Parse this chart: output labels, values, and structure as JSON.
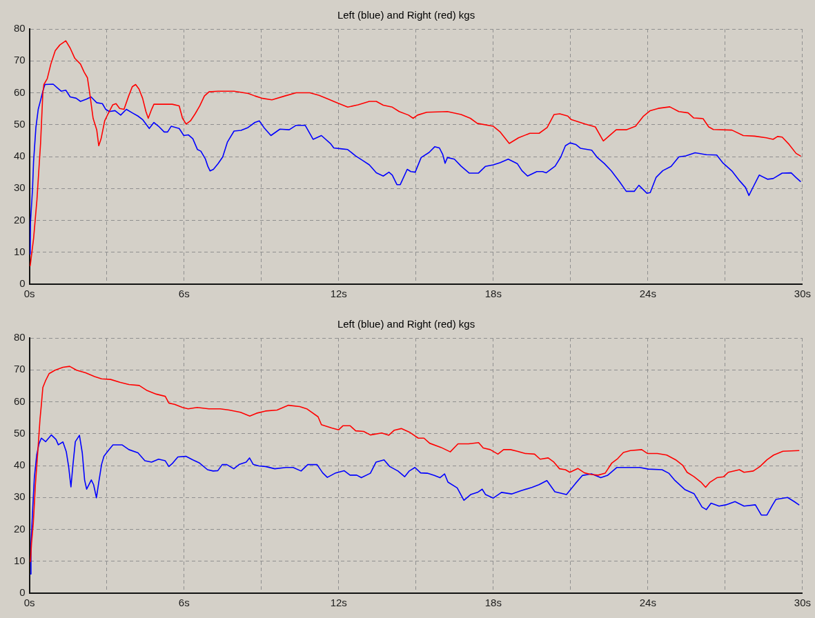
{
  "chart_data": [
    {
      "type": "line",
      "title": "Left (blue) and Right (red) kgs",
      "xlim": [
        0,
        30
      ],
      "ylim": [
        0,
        80
      ],
      "xticks": [
        {
          "value": 0,
          "label": "0s"
        },
        {
          "value": 3,
          "label": null
        },
        {
          "value": 6,
          "label": "6s"
        },
        {
          "value": 9,
          "label": null
        },
        {
          "value": 12,
          "label": "12s"
        },
        {
          "value": 15,
          "label": null
        },
        {
          "value": 18,
          "label": "18s"
        },
        {
          "value": 21,
          "label": null
        },
        {
          "value": 24,
          "label": "24s"
        },
        {
          "value": 27,
          "label": null
        },
        {
          "value": 30,
          "label": "30s"
        }
      ],
      "yticks": [
        0,
        10,
        20,
        30,
        40,
        50,
        60,
        70,
        80
      ],
      "grid": true,
      "series": [
        {
          "color": "#ff0000",
          "x": [
            0.03,
            0.16,
            0.29,
            0.43,
            0.52,
            0.56,
            0.69,
            0.83,
            1.0,
            1.18,
            1.41,
            1.58,
            1.76,
            1.98,
            2.12,
            2.25,
            2.34,
            2.47,
            2.61,
            2.69,
            2.78,
            2.92,
            3.05,
            3.23,
            3.36,
            3.5,
            3.67,
            3.85,
            3.99,
            4.12,
            4.25,
            4.39,
            4.52,
            4.61,
            4.74,
            4.83,
            5.19,
            5.54,
            5.81,
            5.94,
            6.08,
            6.25,
            6.43,
            6.61,
            6.79,
            6.97,
            7.32,
            7.94,
            8.49,
            8.75,
            9.01,
            9.41,
            9.91,
            10.35,
            10.88,
            11.24,
            11.6,
            11.95,
            12.35,
            12.75,
            13.19,
            13.46,
            13.73,
            14.08,
            14.35,
            14.71,
            14.89,
            15.06,
            15.42,
            16.22,
            16.75,
            17.11,
            17.38,
            18.0,
            18.27,
            18.62,
            18.98,
            19.42,
            19.78,
            20.09,
            20.36,
            20.58,
            20.89,
            21.02,
            21.56,
            21.96,
            22.27,
            22.77,
            23.16,
            23.52,
            23.83,
            24.09,
            24.4,
            24.85,
            25.2,
            25.56,
            25.78,
            26.14,
            26.36,
            26.54,
            27.26,
            27.7,
            28.14,
            28.59,
            28.86,
            29.03,
            29.21,
            29.48,
            29.75,
            29.92
          ],
          "values": [
            5.8,
            14.3,
            26.4,
            44,
            60,
            62.6,
            64.4,
            69,
            73.2,
            75,
            76.3,
            74,
            70.8,
            69,
            66.5,
            64.7,
            59.8,
            52,
            48.4,
            43.4,
            45.6,
            51.2,
            53.4,
            56.2,
            56.6,
            55.1,
            54.8,
            59,
            61.9,
            62.6,
            61.2,
            58.3,
            54.1,
            52,
            54.8,
            56.4,
            56.4,
            56.4,
            55.9,
            52,
            50.2,
            51.2,
            53.4,
            55.9,
            59,
            60.3,
            60.5,
            60.5,
            59.8,
            59,
            58.3,
            57.8,
            59,
            60,
            60,
            59.2,
            58,
            56.8,
            55.5,
            56.2,
            57.3,
            57.3,
            56.1,
            55.5,
            54.1,
            53,
            52,
            53,
            53.9,
            54.1,
            53.2,
            52,
            50.4,
            49.5,
            47.7,
            44.1,
            45.9,
            47.3,
            47.3,
            49.1,
            53.2,
            53.4,
            52.7,
            51.6,
            50.2,
            49.3,
            44.9,
            48.4,
            48.4,
            49.5,
            52.7,
            54.4,
            55.1,
            55.6,
            54.1,
            53.7,
            52.1,
            51.9,
            49.3,
            48.5,
            48.3,
            46.6,
            46.4,
            45.9,
            45.4,
            46.3,
            46.1,
            43.8,
            41,
            40.2
          ]
        },
        {
          "color": "#0000ff",
          "x": [
            0.03,
            0.04,
            0.12,
            0.16,
            0.25,
            0.34,
            0.43,
            0.52,
            0.6,
            0.92,
            1.09,
            1.23,
            1.41,
            1.58,
            1.81,
            1.98,
            2.21,
            2.39,
            2.61,
            2.83,
            2.96,
            3.1,
            3.32,
            3.54,
            3.76,
            3.99,
            4.21,
            4.39,
            4.56,
            4.65,
            4.83,
            5.01,
            5.23,
            5.36,
            5.5,
            5.81,
            5.99,
            6.17,
            6.34,
            6.52,
            6.65,
            6.83,
            6.92,
            7.01,
            7.14,
            7.32,
            7.5,
            7.68,
            7.94,
            8.21,
            8.48,
            8.75,
            8.92,
            9.1,
            9.37,
            9.72,
            10.08,
            10.35,
            10.7,
            11.01,
            11.33,
            11.68,
            11.81,
            12.13,
            12.35,
            12.66,
            12.93,
            13.19,
            13.46,
            13.73,
            13.95,
            14.08,
            14.26,
            14.39,
            14.66,
            14.8,
            14.97,
            15.2,
            15.51,
            15.73,
            15.91,
            16.04,
            16.13,
            16.22,
            16.49,
            16.75,
            17.07,
            17.42,
            17.69,
            18.0,
            18.27,
            18.58,
            18.93,
            19.11,
            19.33,
            19.69,
            19.91,
            20.05,
            20.4,
            20.62,
            20.8,
            20.98,
            21.2,
            21.38,
            21.82,
            22.04,
            22.31,
            22.58,
            22.9,
            23.16,
            23.47,
            23.65,
            23.96,
            24.09,
            24.32,
            24.58,
            24.9,
            25.2,
            25.47,
            25.83,
            26.27,
            26.67,
            26.9,
            27.26,
            27.56,
            27.79,
            27.92,
            28.1,
            28.32,
            28.64,
            28.86,
            29.21,
            29.56,
            29.74,
            29.92
          ],
          "values": [
            9.4,
            19.3,
            30,
            38.5,
            49.1,
            54.8,
            57.6,
            60.5,
            62.6,
            62.7,
            61.5,
            60.5,
            60.8,
            58.7,
            58.3,
            57.3,
            58,
            58.7,
            56.9,
            56.6,
            54.8,
            54.1,
            54.4,
            53,
            54.8,
            53.7,
            52.7,
            51.6,
            49.8,
            48.8,
            50.7,
            49.5,
            47.7,
            47.7,
            49.5,
            48.8,
            46.6,
            46.8,
            45.6,
            42.2,
            41.7,
            39.2,
            37,
            35.5,
            36,
            37.8,
            39.9,
            44.5,
            48,
            48.2,
            49.1,
            50.7,
            51.2,
            49.1,
            46.6,
            48.6,
            48.4,
            49.8,
            49.8,
            45.4,
            46.6,
            44.1,
            42.7,
            42.4,
            42.2,
            40.2,
            38.8,
            37.4,
            34.9,
            33.9,
            35.1,
            34.2,
            31.2,
            31.2,
            36,
            35.3,
            35.1,
            39.7,
            41.3,
            43.1,
            42.7,
            40.6,
            37.9,
            39.7,
            39.2,
            37,
            34.8,
            34.8,
            36.9,
            37.4,
            38.1,
            39.2,
            37.8,
            35.6,
            33.9,
            35.3,
            35.3,
            34.9,
            37,
            39.9,
            43.4,
            44.3,
            43.8,
            42.6,
            42,
            39.7,
            37.8,
            35.5,
            32.1,
            29.1,
            29.1,
            31,
            28.5,
            28.7,
            33.5,
            35.6,
            36.9,
            39.9,
            40.2,
            41.2,
            40.6,
            40.5,
            38.1,
            35.5,
            32.4,
            30.3,
            27.8,
            30.7,
            34.2,
            32.9,
            33.1,
            34.8,
            34.9,
            33.5,
            32.2
          ]
        }
      ]
    },
    {
      "type": "line",
      "title": "Left (blue) and Right (red) kgs",
      "xlim": [
        0,
        30
      ],
      "ylim": [
        0,
        80
      ],
      "xticks": [
        {
          "value": 0,
          "label": "0s"
        },
        {
          "value": 3,
          "label": null
        },
        {
          "value": 6,
          "label": "6s"
        },
        {
          "value": 9,
          "label": null
        },
        {
          "value": 12,
          "label": "12s"
        },
        {
          "value": 15,
          "label": null
        },
        {
          "value": 18,
          "label": "18s"
        },
        {
          "value": 21,
          "label": null
        },
        {
          "value": 24,
          "label": "24s"
        },
        {
          "value": 27,
          "label": null
        },
        {
          "value": 30,
          "label": "30s"
        }
      ],
      "yticks": [
        0,
        10,
        20,
        30,
        40,
        50,
        60,
        70,
        80
      ],
      "grid": true,
      "series": [
        {
          "color": "#ff0000",
          "x": [
            0.04,
            0.08,
            0.15,
            0.23,
            0.32,
            0.41,
            0.46,
            0.52,
            0.63,
            0.76,
            0.99,
            1.3,
            1.56,
            1.83,
            2.18,
            2.53,
            2.8,
            3.15,
            3.51,
            3.86,
            4.26,
            4.57,
            4.92,
            5.27,
            5.41,
            5.63,
            5.94,
            6.16,
            6.51,
            6.96,
            7.4,
            7.75,
            8.19,
            8.55,
            8.81,
            9.16,
            9.61,
            10.05,
            10.49,
            10.76,
            11.2,
            11.33,
            11.73,
            12.0,
            12.17,
            12.44,
            12.66,
            12.97,
            13.23,
            13.67,
            13.94,
            14.16,
            14.43,
            14.74,
            15.09,
            15.31,
            15.53,
            15.97,
            16.33,
            16.63,
            17.04,
            17.43,
            17.61,
            17.88,
            18.18,
            18.4,
            18.67,
            18.93,
            19.24,
            19.6,
            19.82,
            20.13,
            20.35,
            20.57,
            20.8,
            20.97,
            21.28,
            21.54,
            21.81,
            22.07,
            22.34,
            22.6,
            22.83,
            23.05,
            23.32,
            23.76,
            23.98,
            24.37,
            24.73,
            25.08,
            25.35,
            25.52,
            25.79,
            26.06,
            26.24,
            26.41,
            26.68,
            26.94,
            27.12,
            27.55,
            27.73,
            28.09,
            28.35,
            28.62,
            28.88,
            29.24,
            29.86
          ],
          "values": [
            9.9,
            15.6,
            22,
            34,
            44,
            54.6,
            58.9,
            64.5,
            66.7,
            68.8,
            69.9,
            70.8,
            71.1,
            69.9,
            69.1,
            67.9,
            67.2,
            67,
            66.1,
            65.4,
            65.1,
            63.5,
            62.4,
            61.7,
            59.6,
            59.2,
            58.2,
            57.8,
            58.2,
            57.8,
            57.8,
            57.4,
            56.7,
            55.5,
            56.4,
            57.1,
            57.4,
            58.9,
            58.5,
            57.8,
            55.3,
            52.8,
            51.8,
            51.2,
            52.5,
            52.5,
            50.9,
            50.7,
            49.6,
            50.2,
            49.5,
            51.1,
            51.6,
            50.5,
            48.6,
            48.6,
            47,
            45.7,
            44.3,
            46.8,
            46.8,
            47.2,
            45.5,
            45,
            43.6,
            45,
            45,
            44.5,
            43.8,
            43.6,
            42,
            42.4,
            41.1,
            39,
            38.7,
            37.9,
            39.1,
            37.7,
            37.2,
            37,
            37.6,
            40.8,
            42.2,
            44.1,
            44.7,
            45,
            43.8,
            43.8,
            43.3,
            41.8,
            40.1,
            37.9,
            36.5,
            34.8,
            33.2,
            34.8,
            36.2,
            36.5,
            37.9,
            38.7,
            37.9,
            38.3,
            39.7,
            41.8,
            43.3,
            44.5,
            44.7
          ]
        },
        {
          "color": "#0000ff",
          "x": [
            0.04,
            0.06,
            0.13,
            0.19,
            0.28,
            0.37,
            0.46,
            0.63,
            0.85,
            1.03,
            1.12,
            1.3,
            1.43,
            1.52,
            1.61,
            1.69,
            1.78,
            1.94,
            2.05,
            2.14,
            2.22,
            2.4,
            2.49,
            2.6,
            2.69,
            2.8,
            2.89,
            3.06,
            3.24,
            3.59,
            3.86,
            4.21,
            4.48,
            4.74,
            5.01,
            5.27,
            5.41,
            5.54,
            5.76,
            6.07,
            6.34,
            6.6,
            6.91,
            7.13,
            7.31,
            7.48,
            7.66,
            7.93,
            8.15,
            8.41,
            8.54,
            8.68,
            8.9,
            9.16,
            9.52,
            9.96,
            10.23,
            10.54,
            10.8,
            11.16,
            11.38,
            11.56,
            11.86,
            12.21,
            12.44,
            12.7,
            12.88,
            13.23,
            13.45,
            13.76,
            13.98,
            14.3,
            14.56,
            14.74,
            14.96,
            15.18,
            15.44,
            15.71,
            15.93,
            16.11,
            16.24,
            16.6,
            16.86,
            17.12,
            17.39,
            17.57,
            17.7,
            18.0,
            18.32,
            18.71,
            19.07,
            19.51,
            19.77,
            20.08,
            20.39,
            20.84,
            21.19,
            21.46,
            21.81,
            22.17,
            22.43,
            22.79,
            23.68,
            24.02,
            24.55,
            24.81,
            25.03,
            25.43,
            25.79,
            26.1,
            26.27,
            26.45,
            26.76,
            27.03,
            27.38,
            27.73,
            28.17,
            28.4,
            28.62,
            28.84,
            28.97,
            29.42,
            29.68,
            29.86
          ],
          "values": [
            6,
            15.6,
            27,
            36.2,
            43.3,
            46.8,
            48.6,
            47.5,
            49.6,
            48.2,
            46.5,
            47.4,
            44.3,
            39.7,
            33.3,
            40.4,
            47.5,
            49.5,
            44,
            35.5,
            32.6,
            35.5,
            34,
            29.9,
            34.8,
            40.4,
            42.9,
            44.7,
            46.5,
            46.5,
            45,
            44,
            41.5,
            41.1,
            42,
            41.5,
            39.7,
            40.6,
            42.7,
            42.9,
            41.8,
            40.8,
            38.7,
            38.3,
            38.4,
            40.3,
            40.3,
            39,
            40.4,
            41.1,
            42.4,
            40.4,
            39.9,
            39.7,
            39,
            39.4,
            39.4,
            38.3,
            40.3,
            40.3,
            37.7,
            36.3,
            37.6,
            38.4,
            37,
            37,
            36.2,
            37.6,
            41.1,
            41.8,
            39.7,
            38.3,
            36.5,
            38.3,
            39.4,
            37.7,
            37.6,
            36.9,
            36.2,
            37.4,
            34.8,
            33,
            29.1,
            30.9,
            31.6,
            32.6,
            30.9,
            29.8,
            31.6,
            31.1,
            32.1,
            33.2,
            34,
            35.3,
            31.8,
            30.9,
            34.4,
            36.9,
            37.4,
            36.2,
            36.9,
            39.4,
            39.4,
            38.9,
            38.7,
            37.6,
            35.5,
            32.5,
            31.2,
            27,
            26.2,
            28.2,
            27.3,
            27.7,
            28.7,
            27.3,
            27.7,
            24.5,
            24.5,
            27.7,
            29.4,
            30,
            28.7,
            27.7
          ]
        }
      ]
    }
  ]
}
